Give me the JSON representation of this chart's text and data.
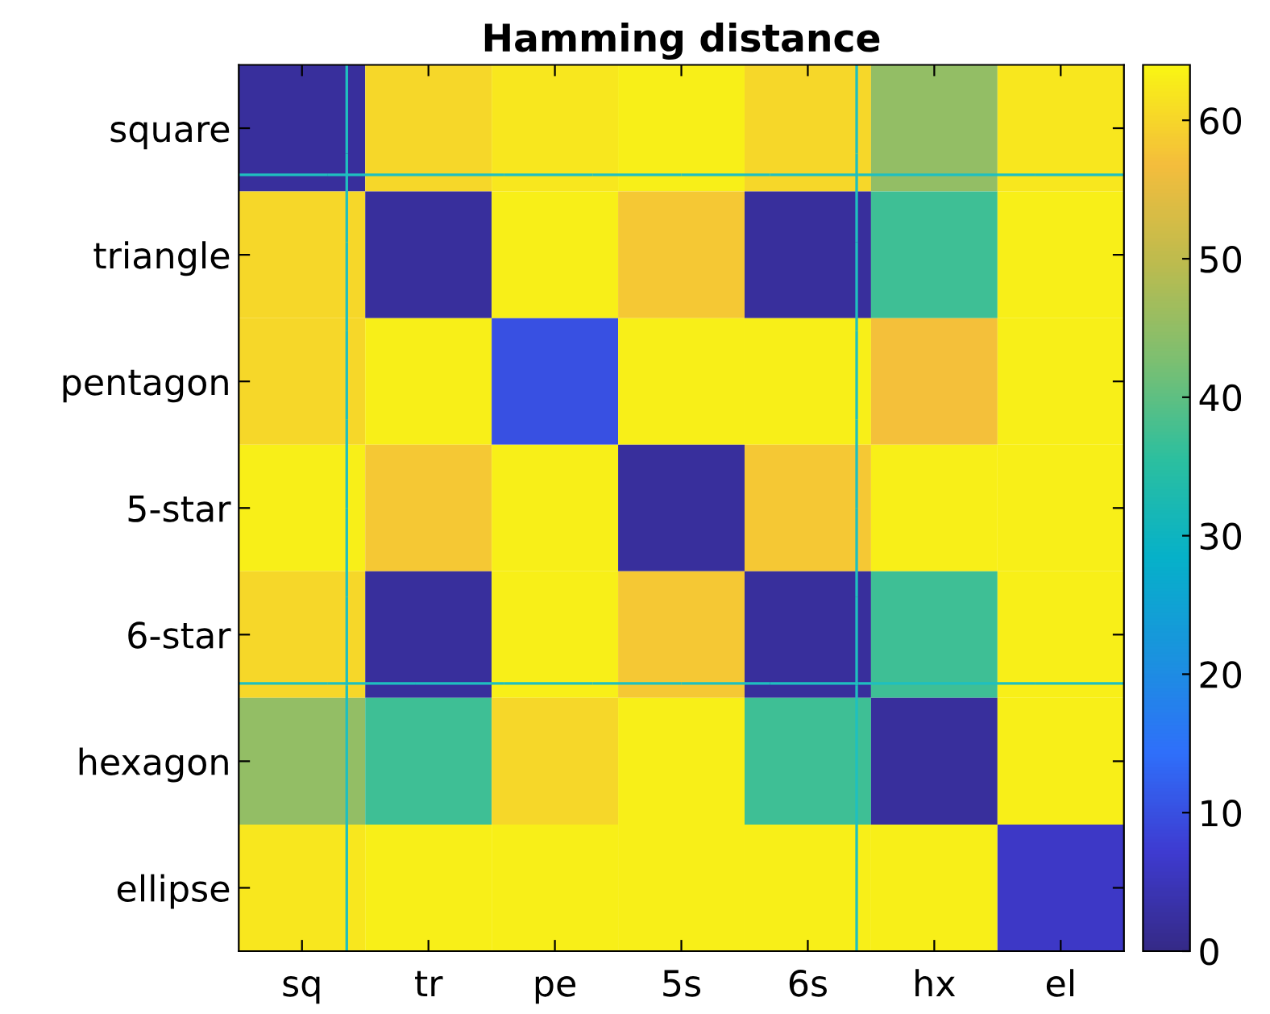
{
  "chart_data": {
    "type": "heatmap",
    "title": "Hamming distance",
    "categories": [
      "sq",
      "tr",
      "pe",
      "5s",
      "6s",
      "hx",
      "el"
    ],
    "y_categories": [
      "square",
      "triangle",
      "pentagon",
      "5-star",
      "6-star",
      "hexagon",
      "ellipse"
    ],
    "cells": [
      [
        2,
        60,
        62,
        63,
        60,
        45,
        62
      ],
      [
        60,
        2,
        63,
        58,
        2,
        37,
        63
      ],
      [
        60,
        63,
        10,
        63,
        63,
        57,
        63
      ],
      [
        63,
        58,
        63,
        2,
        58,
        63,
        63
      ],
      [
        60,
        2,
        63,
        58,
        2,
        37,
        63
      ],
      [
        45,
        37,
        60,
        63,
        37,
        2,
        63
      ],
      [
        62,
        63,
        63,
        63,
        63,
        63,
        6
      ]
    ],
    "clim": [
      0,
      64
    ],
    "cticks": [
      0,
      10,
      20,
      30,
      40,
      50,
      60
    ]
  }
}
